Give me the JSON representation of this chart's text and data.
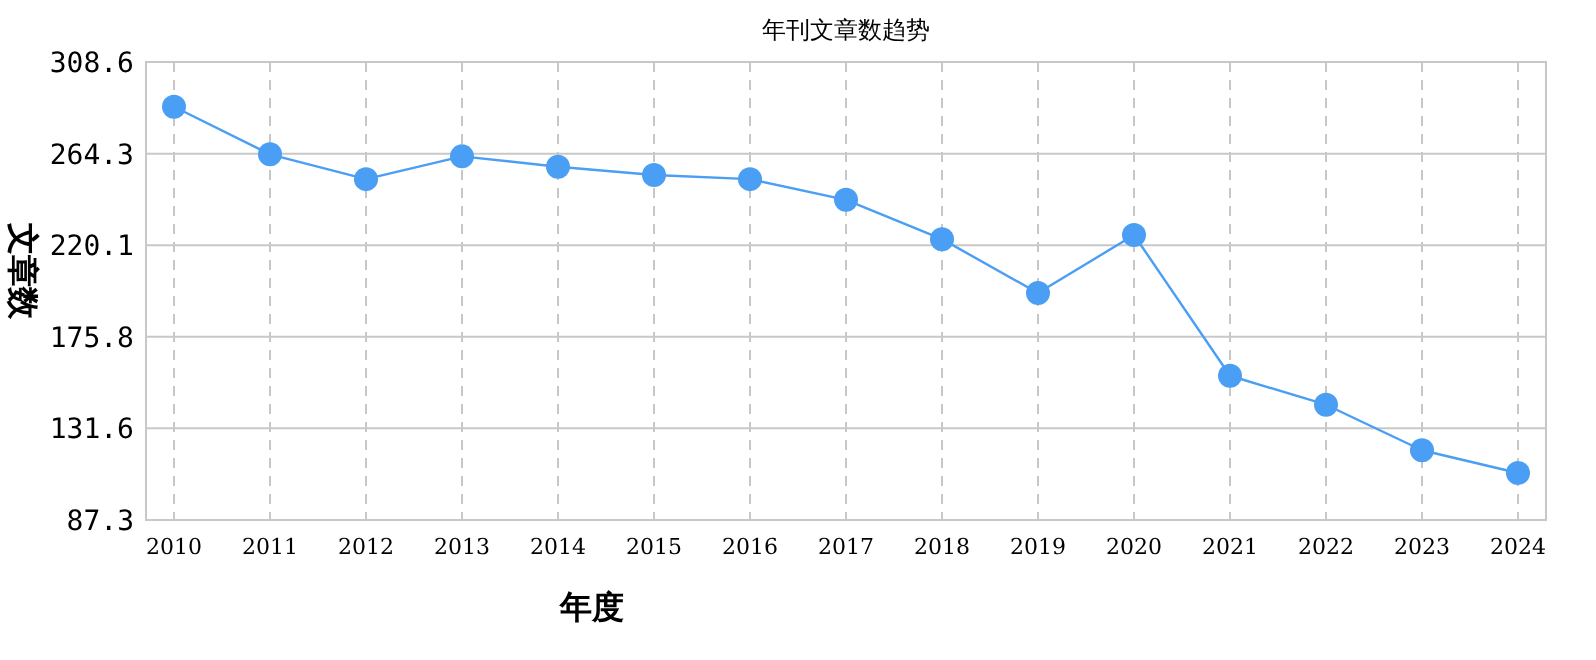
{
  "chart_data": {
    "type": "line",
    "title": "年刊文章数趋势",
    "xlabel": "年度",
    "ylabel": "文章数",
    "categories": [
      "2010",
      "2011",
      "2012",
      "2013",
      "2014",
      "2015",
      "2016",
      "2017",
      "2018",
      "2019",
      "2020",
      "2021",
      "2022",
      "2023",
      "2024"
    ],
    "series": [
      {
        "color": "#4a9ef4",
        "values": [
          287,
          264,
          252,
          263,
          258,
          254,
          252,
          242,
          223,
          197,
          225,
          157,
          143,
          121,
          110
        ]
      }
    ],
    "ylim": [
      87.3,
      308.6
    ],
    "yticks": [
      87.3,
      131.6,
      175.8,
      220.1,
      264.3,
      308.6
    ],
    "grid": true,
    "marker": "circle",
    "line_style": "solid"
  }
}
